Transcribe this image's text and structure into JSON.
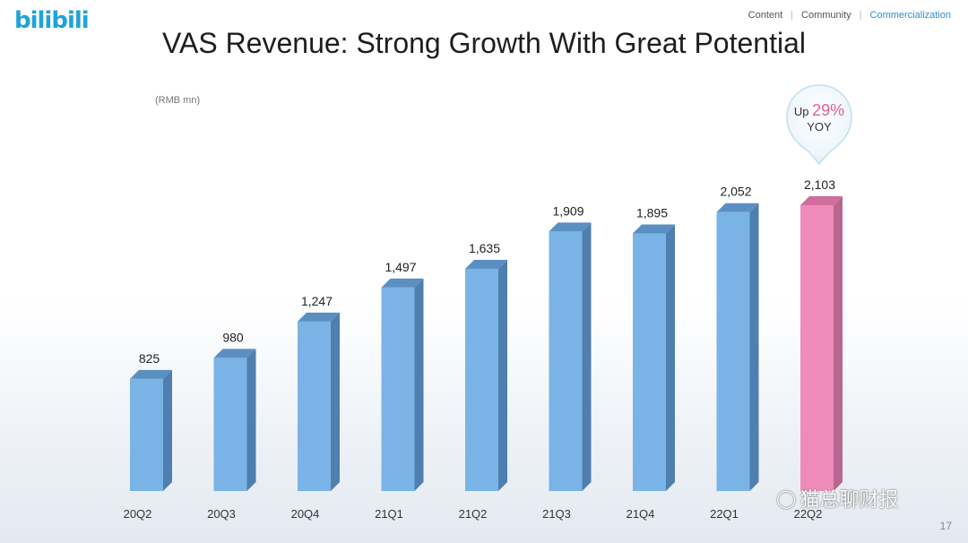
{
  "logo": "bilibili",
  "nav": {
    "items": [
      "Content",
      "Community",
      "Commercialization"
    ],
    "active": "Commercialization"
  },
  "title": "VAS Revenue: Strong Growth With Great Potential",
  "unit_label": "(RMB mn)",
  "callout": {
    "prefix": "Up",
    "value": "29%",
    "suffix": "YOY"
  },
  "chart_data": {
    "type": "bar",
    "title": "VAS Revenue: Strong Growth With Great Potential",
    "ylabel": "(RMB mn)",
    "categories": [
      "20Q2",
      "20Q3",
      "20Q4",
      "21Q1",
      "21Q2",
      "21Q3",
      "21Q4",
      "22Q1",
      "22Q2"
    ],
    "values": [
      825,
      980,
      1247,
      1497,
      1635,
      1909,
      1895,
      2052,
      2103
    ],
    "value_labels": [
      "825",
      "980",
      "1,247",
      "1,497",
      "1,635",
      "1,909",
      "1,895",
      "2,052",
      "2,103"
    ],
    "highlight_index": 8,
    "colors": {
      "bar": "#7ab4e6",
      "bar_side": "#4f7fae",
      "bar_top": "#5b8fc2",
      "highlight": "#ee8bbb",
      "highlight_side": "#b8668f",
      "highlight_top": "#d06d9e"
    },
    "ylim": [
      0,
      2103
    ]
  },
  "watermark": {
    "icon": "wechat-icon",
    "text": "猫总聊财报"
  },
  "page_number": "17"
}
